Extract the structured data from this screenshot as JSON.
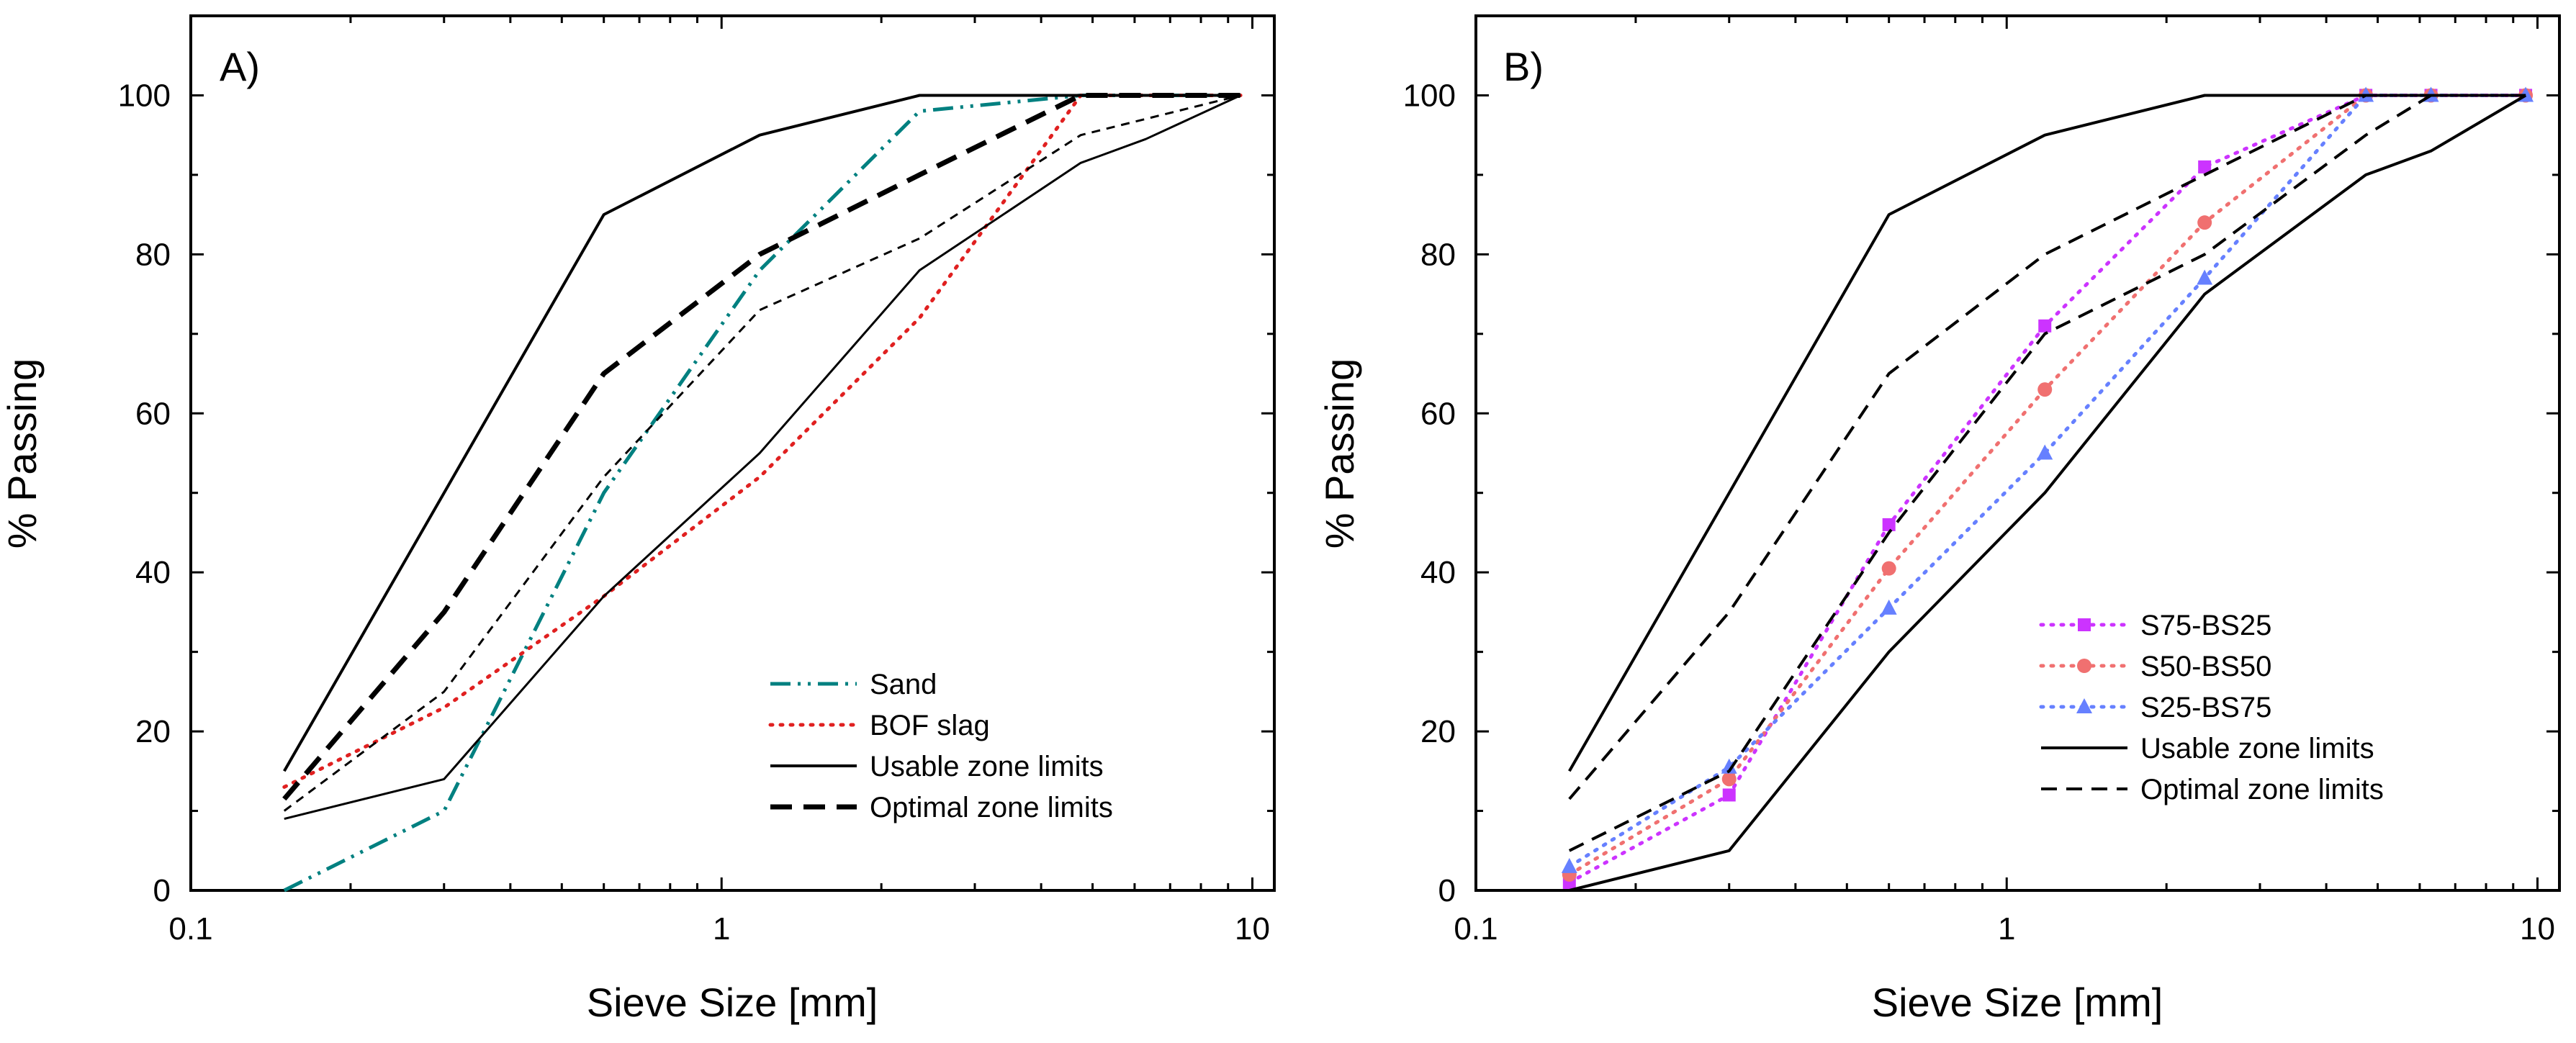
{
  "chart_data": [
    {
      "panel": "A)",
      "type": "line",
      "xscale": "log",
      "xlim": [
        0.1,
        11
      ],
      "ylim": [
        0,
        110
      ],
      "xticks": [
        0.1,
        1,
        10
      ],
      "xtick_labels": [
        "0.1",
        "1",
        "10"
      ],
      "yticks": [
        0,
        20,
        40,
        60,
        80,
        100
      ],
      "ytick_labels": [
        "0",
        "20",
        "40",
        "60",
        "80",
        "100"
      ],
      "xlabel": "Sieve Size [mm]",
      "ylabel": "% Passing",
      "legend": [
        "Sand",
        "BOF slag",
        "Usable zone limits",
        "Optimal zone limits"
      ],
      "legend_position": "bottom-right",
      "series": [
        {
          "name": "Sand",
          "style": "dash-dot-dot",
          "color": "#008080",
          "x": [
            0.15,
            0.3,
            0.6,
            1.18,
            2.36,
            4.75,
            9.5
          ],
          "y": [
            0,
            10,
            50,
            78,
            98,
            100,
            100
          ]
        },
        {
          "name": "BOF slag",
          "style": "dotted",
          "color": "#e02020",
          "x": [
            0.15,
            0.3,
            0.6,
            1.18,
            2.36,
            4.75,
            9.5
          ],
          "y": [
            13,
            23,
            37,
            52,
            72,
            100,
            100
          ]
        },
        {
          "name": "BOF slag (limits, lower)",
          "style": "thin-dash",
          "color": "#000000",
          "legend": false,
          "x": [
            0.15,
            0.3,
            0.6,
            1.18,
            2.36,
            4.75,
            9.5
          ],
          "y": [
            10,
            25,
            52,
            73,
            82,
            95,
            100
          ]
        },
        {
          "name": "Usable zone limits",
          "style": "solid",
          "color": "#000000",
          "legend": false,
          "x": [
            0.15,
            0.3,
            0.6,
            1.18,
            2.36,
            4.75,
            9.5
          ],
          "y": [
            15,
            50,
            85,
            95,
            100,
            100,
            100
          ]
        },
        {
          "name": "Usable zone limits (lower)",
          "style": "solid-thin",
          "color": "#000000",
          "legend": false,
          "x": [
            0.15,
            0.3,
            0.6,
            1.18,
            2.36,
            4.75,
            6.3,
            9.5
          ],
          "y": [
            9,
            14,
            37,
            55,
            78,
            91.5,
            94.5,
            100
          ]
        },
        {
          "name": "Optimal zone limits",
          "style": "thick-dash",
          "color": "#000000",
          "legend": false,
          "x": [
            0.15,
            0.3,
            0.6,
            1.18,
            2.36,
            4.75,
            9.5
          ],
          "y": [
            11.5,
            35,
            65,
            80,
            90,
            100,
            100
          ]
        }
      ]
    },
    {
      "panel": "B)",
      "type": "line",
      "xscale": "log",
      "xlim": [
        0.1,
        11
      ],
      "ylim": [
        0,
        110
      ],
      "xticks": [
        0.1,
        1,
        10
      ],
      "xtick_labels": [
        "0.1",
        "1",
        "10"
      ],
      "yticks": [
        0,
        20,
        40,
        60,
        80,
        100
      ],
      "ytick_labels": [
        "0",
        "20",
        "40",
        "60",
        "80",
        "100"
      ],
      "xlabel": "Sieve Size [mm]",
      "ylabel": "% Passing",
      "legend": [
        "S75-BS25",
        "S50-BS50",
        "S25-BS75",
        "Usable zone limits",
        "Optimal zone limits"
      ],
      "legend_position": "bottom-right",
      "series": [
        {
          "name": "S75-BS25",
          "style": "dotted",
          "marker": "square",
          "color": "#cc33ff",
          "x": [
            0.15,
            0.3,
            0.6,
            1.18,
            2.36,
            4.75,
            6.3,
            9.5
          ],
          "y": [
            1,
            12,
            46,
            71,
            91,
            100,
            100,
            100
          ]
        },
        {
          "name": "S50-BS50",
          "style": "dotted",
          "marker": "circle",
          "color": "#f07070",
          "x": [
            0.15,
            0.3,
            0.6,
            1.18,
            2.36,
            4.75,
            6.3,
            9.5
          ],
          "y": [
            2,
            14,
            40.5,
            63,
            84,
            100,
            100,
            100
          ]
        },
        {
          "name": "S25-BS75",
          "style": "dotted",
          "marker": "triangle",
          "color": "#6680ff",
          "x": [
            0.15,
            0.3,
            0.6,
            1.18,
            2.36,
            4.75,
            6.3,
            9.5
          ],
          "y": [
            3,
            15.5,
            35.5,
            55,
            77,
            100,
            100,
            100
          ]
        },
        {
          "name": "Usable zone limits",
          "style": "solid",
          "color": "#000000",
          "x": [
            0.15,
            0.3,
            0.6,
            1.18,
            2.36,
            4.75,
            9.5
          ],
          "y": [
            15,
            50,
            85,
            95,
            100,
            100,
            100
          ]
        },
        {
          "name": "Usable zone limits (lower)",
          "style": "solid",
          "color": "#000000",
          "legend": false,
          "x": [
            0.15,
            0.3,
            0.6,
            1.18,
            2.36,
            4.75,
            6.3,
            9.5
          ],
          "y": [
            0,
            5,
            30,
            50,
            75,
            90,
            93,
            100
          ]
        },
        {
          "name": "Optimal zone limits",
          "style": "dashed",
          "color": "#000000",
          "x": [
            0.15,
            0.3,
            0.6,
            1.18,
            2.36,
            4.75,
            9.5
          ],
          "y": [
            11.5,
            35,
            65,
            80,
            90,
            100,
            100
          ]
        },
        {
          "name": "Optimal zone limits (lower)",
          "style": "dashed",
          "color": "#000000",
          "legend": false,
          "x": [
            0.15,
            0.3,
            0.6,
            1.18,
            2.36,
            4.75,
            6.3,
            9.5
          ],
          "y": [
            5,
            15,
            45,
            70,
            80,
            95,
            100,
            100
          ]
        }
      ]
    }
  ]
}
